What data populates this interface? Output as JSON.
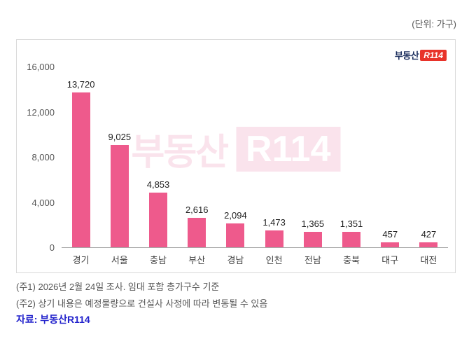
{
  "unit_label": "(단위: 가구)",
  "logo": {
    "left": "부동산",
    "right": "R114"
  },
  "watermark": {
    "left": "부동산",
    "right": "R114"
  },
  "chart_data": {
    "type": "bar",
    "categories": [
      "경기",
      "서울",
      "충남",
      "부산",
      "경남",
      "인천",
      "전남",
      "충북",
      "대구",
      "대전"
    ],
    "values": [
      13720,
      9025,
      4853,
      2616,
      2094,
      1473,
      1365,
      1351,
      457,
      427
    ],
    "value_labels": [
      "13,720",
      "9,025",
      "4,853",
      "2,616",
      "2,094",
      "1,473",
      "1,365",
      "1,351",
      "457",
      "427"
    ],
    "title": "",
    "xlabel": "",
    "ylabel": "",
    "ylim": [
      0,
      16000
    ],
    "y_ticks": [
      0,
      4000,
      8000,
      12000,
      16000
    ],
    "y_tick_labels": [
      "0",
      "4,000",
      "8,000",
      "12,000",
      "16,000"
    ],
    "bar_color": "#ee5a8c",
    "grid": false,
    "legend": false
  },
  "notes": [
    "(주1) 2026년 2월 24일 조사. 임대 포함 총가구수 기준",
    "(주2) 상기 내용은 예정물량으로 건설사 사정에 따라 변동될 수 있음"
  ],
  "source": "자료: 부동산R114",
  "colors": {
    "bar": "#ee5a8c",
    "source_text": "#2222cc",
    "note_text": "#555555",
    "logo_red": "#e8332a"
  }
}
